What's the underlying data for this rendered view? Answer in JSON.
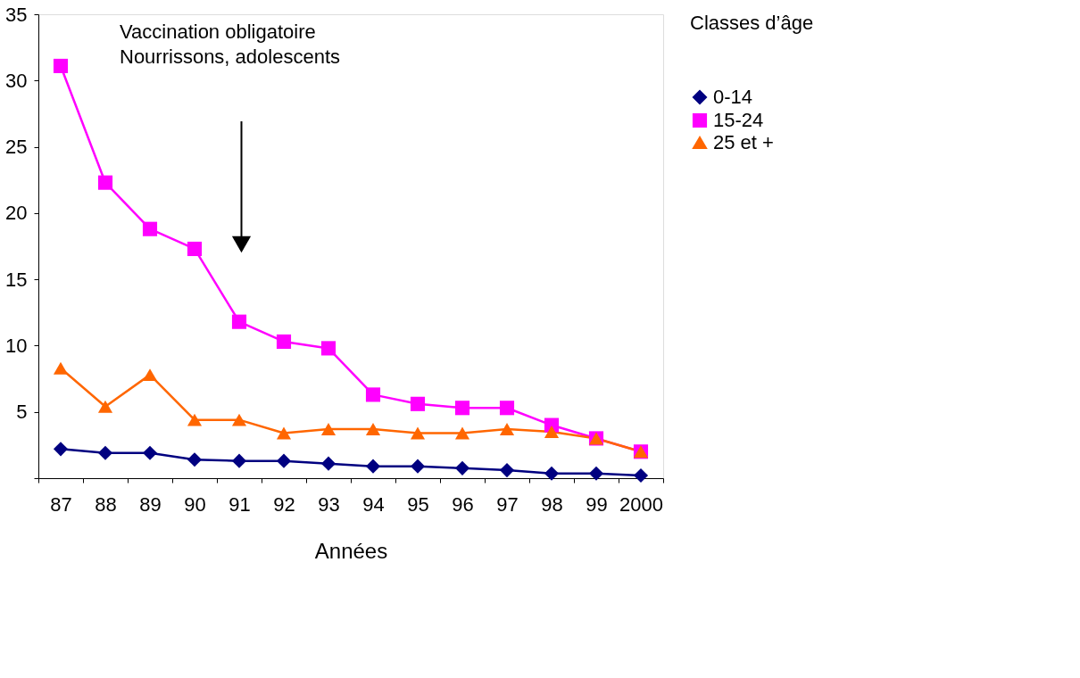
{
  "chart_data": {
    "type": "line",
    "xlabel": "Années",
    "legend_title": "Classes d’âge",
    "legend": "right",
    "grid": false,
    "categories": [
      "87",
      "88",
      "89",
      "90",
      "91",
      "92",
      "93",
      "94",
      "95",
      "96",
      "97",
      "98",
      "99",
      "2000"
    ],
    "ylim": [
      0,
      35
    ],
    "yticks": [
      {
        "value": 0,
        "label": null
      },
      5,
      10,
      15,
      20,
      25,
      30,
      35
    ],
    "annotations": [
      "Vaccination obligatoire\nNourrissons, adolescents"
    ],
    "series": [
      {
        "name": "0-14",
        "color": "#000080",
        "marker": "diamond",
        "values": [
          2.2,
          1.9,
          1.9,
          1.4,
          1.3,
          1.3,
          1.1,
          0.9,
          0.9,
          0.75,
          0.6,
          0.35,
          0.35,
          0.2
        ]
      },
      {
        "name": "15-24",
        "color": "#ff00ff",
        "marker": "square",
        "values": [
          31.1,
          22.3,
          18.8,
          17.3,
          11.8,
          10.3,
          9.8,
          6.3,
          5.6,
          5.3,
          5.3,
          4.0,
          3.0,
          2.0
        ]
      },
      {
        "name": "25 et +",
        "color": "#ff6600",
        "marker": "triangle",
        "values": [
          8.3,
          5.4,
          7.8,
          4.4,
          4.4,
          3.4,
          3.7,
          3.7,
          3.4,
          3.4,
          3.7,
          3.5,
          3.0,
          2.0
        ]
      }
    ]
  }
}
